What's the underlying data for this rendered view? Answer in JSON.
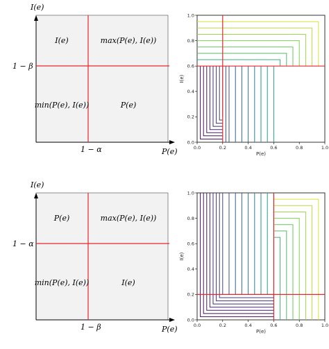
{
  "panels": [
    {
      "y_axis_label": "I(e)",
      "x_axis_label": "P(e)",
      "y_threshold_label": "1 − β",
      "x_threshold_label": "1 − α",
      "quadrant_top_left": "I(e)",
      "quadrant_top_right": "max(P(e), I(e))",
      "quadrant_bottom_left": "min(P(e), I(e))",
      "quadrant_bottom_right": "P(e)"
    },
    {
      "y_axis_label": "I(e)",
      "x_axis_label": "P(e)",
      "y_threshold_label": "1 − α",
      "x_threshold_label": "1 − β",
      "quadrant_top_left": "P(e)",
      "quadrant_top_right": "max(P(e), I(e))",
      "quadrant_bottom_left": "min(P(e), I(e))",
      "quadrant_bottom_right": "I(e)"
    }
  ],
  "chart_data": [
    {
      "type": "line",
      "xlabel": "P(e)",
      "ylabel": "I(e)",
      "xlim": [
        0,
        1
      ],
      "ylim": [
        0,
        1
      ],
      "x_ticks": [
        "0.0",
        "0.2",
        "0.4",
        "0.6",
        "0.8",
        "1.0"
      ],
      "y_ticks": [
        "0.0",
        "0.2",
        "0.4",
        "0.6",
        "0.8",
        "1.0"
      ],
      "threshold_x": 0.2,
      "threshold_y": 0.6,
      "contour_levels_low": [
        0.025,
        0.05,
        0.075,
        0.1,
        0.125,
        0.15,
        0.175,
        0.2,
        0.225,
        0.25,
        0.3,
        0.35,
        0.4,
        0.45,
        0.5,
        0.55,
        0.6
      ],
      "contour_levels_high": [
        0.65,
        0.7,
        0.75,
        0.8,
        0.85,
        0.9,
        0.95
      ],
      "threshold_color": "#e8262b"
    },
    {
      "type": "line",
      "xlabel": "P(e)",
      "ylabel": "I(e)",
      "xlim": [
        0,
        1
      ],
      "ylim": [
        0,
        1
      ],
      "x_ticks": [
        "0.0",
        "0.2",
        "0.4",
        "0.6",
        "0.8",
        "1.0"
      ],
      "y_ticks": [
        "0.0",
        "0.2",
        "0.4",
        "0.6",
        "0.8",
        "1.0"
      ],
      "threshold_x": 0.6,
      "threshold_y": 0.2,
      "contour_levels_low": [
        0.025,
        0.05,
        0.075,
        0.1,
        0.125,
        0.15,
        0.175,
        0.2
      ],
      "contour_levels_high": [
        0.25,
        0.3,
        0.35,
        0.4,
        0.45,
        0.5,
        0.55,
        0.6,
        0.65,
        0.7,
        0.75,
        0.8,
        0.85,
        0.9,
        0.95
      ],
      "threshold_color": "#e8262b"
    }
  ],
  "colors": {
    "quadrant_fill": "#f2f2f2",
    "quadrant_line": "#e8262b",
    "axis": "#000000"
  }
}
